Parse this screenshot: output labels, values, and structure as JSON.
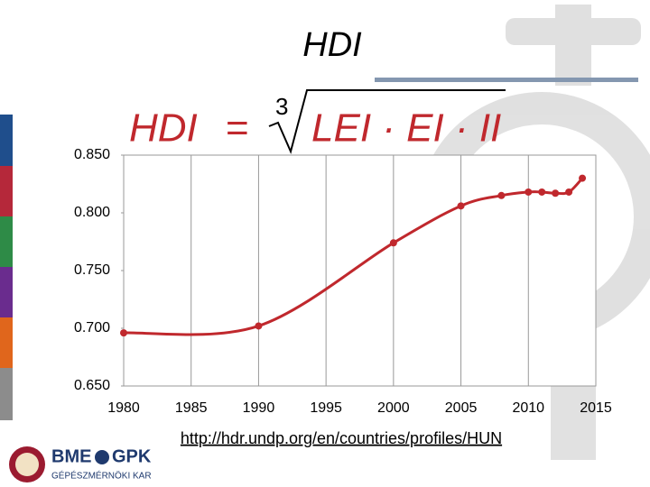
{
  "slide": {
    "title": "HDI",
    "formula": {
      "lhs": "HDI",
      "eq": "=",
      "index": "3",
      "radicand": "LEI · EI · II"
    },
    "source": "http://hdr.undp.org/en/countries/profiles/HUN",
    "logo": {
      "name": "BME",
      "dept": "GPK",
      "faculty": "GÉPÉSZMÉRNÖKI KAR"
    }
  },
  "chart_data": {
    "type": "line",
    "x": [
      1980,
      1990,
      2000,
      2005,
      2008,
      2010,
      2011,
      2012,
      2013,
      2014
    ],
    "series": [
      {
        "name": "HDI",
        "color": "#c0282d",
        "values": [
          0.696,
          0.702,
          0.774,
          0.806,
          0.815,
          0.818,
          0.818,
          0.817,
          0.818,
          0.83
        ]
      }
    ],
    "xlim": [
      1980,
      2015
    ],
    "xticks": [
      1980,
      1985,
      1990,
      1995,
      2000,
      2005,
      2010,
      2015
    ],
    "ylim": [
      0.65,
      0.85
    ],
    "yticks": [
      {
        "value": 0.65,
        "label": "0.650"
      },
      {
        "value": 0.7,
        "label": "0.700"
      },
      {
        "value": 0.75,
        "label": "0.750"
      },
      {
        "value": 0.8,
        "label": "0.800"
      },
      {
        "value": 0.85,
        "label": "0.850"
      }
    ],
    "grid": "x"
  }
}
